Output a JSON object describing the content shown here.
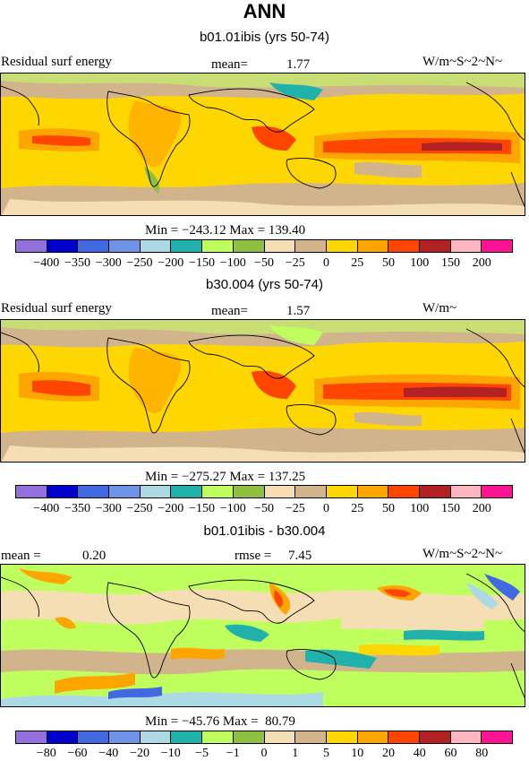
{
  "title": "ANN",
  "units": "W/m~S~2~N~",
  "colors": [
    "#9370db",
    "#0000cd",
    "#4169e1",
    "#6f93e6",
    "#add8e6",
    "#20b2aa",
    "#bfff5e",
    "#90c040",
    "#f5deb3",
    "#d2b48c",
    "#ffd700",
    "#ffa500",
    "#ff4500",
    "#b22222",
    "#ffb6c1",
    "#ff1493"
  ],
  "panel1": {
    "title": "b01.01ibis (yrs 50-74)",
    "label": "Residual surf energy",
    "mean_label": "mean=",
    "mean_value": "1.77",
    "min_max": "Min = −243.12 Max = 139.40",
    "ticks": [
      "−400",
      "−350",
      "−300",
      "−250",
      "−200",
      "−150",
      "−100",
      "−50",
      "−25",
      "0",
      "25",
      "50",
      "100",
      "150",
      "200"
    ]
  },
  "panel2": {
    "title": "b30.004 (yrs 50-74)",
    "label": "Residual surf energy",
    "mean_label": "mean=",
    "mean_value": "1.57",
    "units": "W/m~",
    "min_max": "Min = −275.27 Max = 137.25",
    "ticks": [
      "−400",
      "−350",
      "−300",
      "−250",
      "−200",
      "−150",
      "−100",
      "−50",
      "−25",
      "0",
      "25",
      "50",
      "100",
      "150",
      "200"
    ]
  },
  "panel3": {
    "title": "b01.01ibis - b30.004",
    "mean_label": "mean =",
    "mean_value": "0.20",
    "rmse_label": "rmse =",
    "rmse_value": "7.45",
    "min_max": "Min = −45.76 Max =  80.79",
    "ticks": [
      "−80",
      "−60",
      "−40",
      "−20",
      "−10",
      "−5",
      "−1",
      "0",
      "1",
      "5",
      "10",
      "20",
      "40",
      "60",
      "80"
    ]
  }
}
